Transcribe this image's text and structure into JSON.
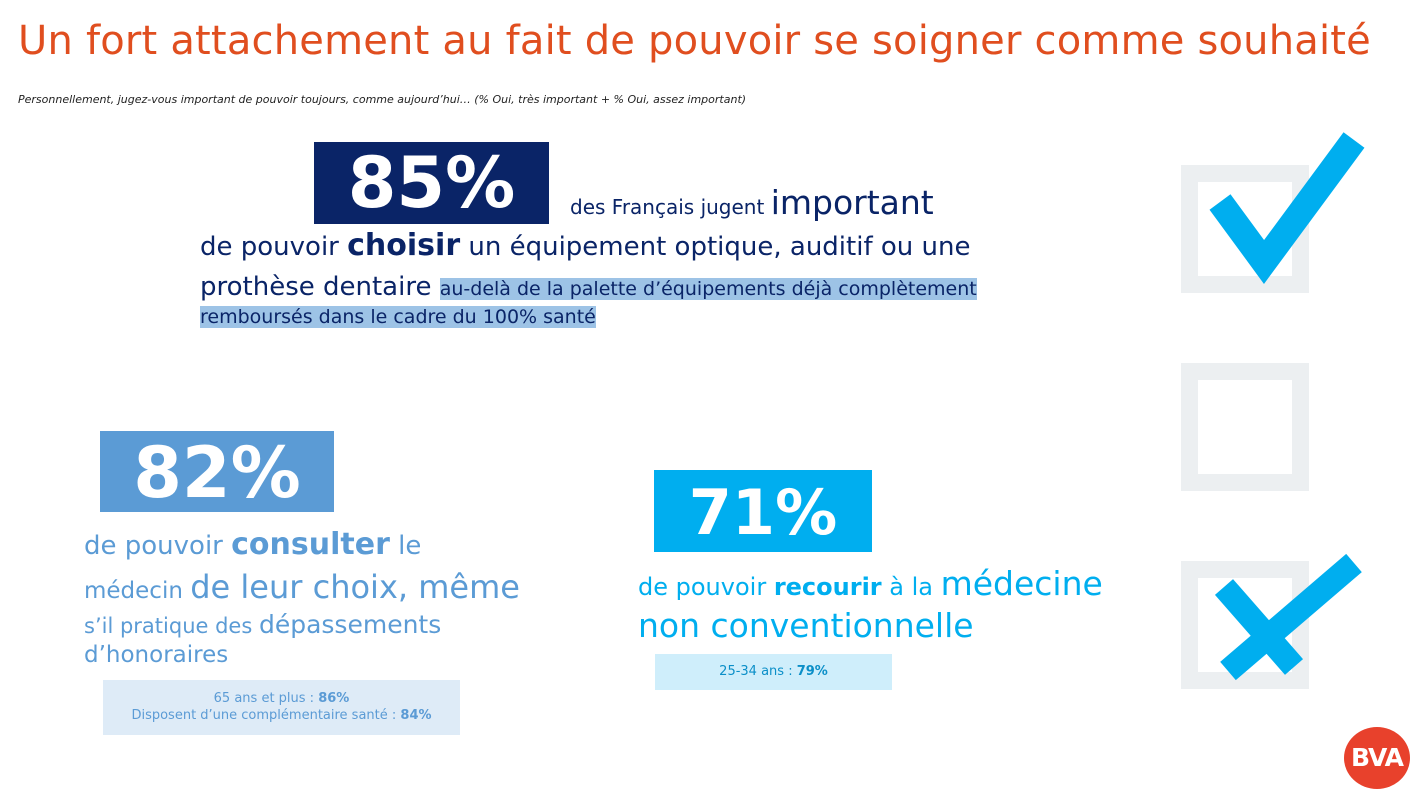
{
  "title": "Un fort attachement au fait de pouvoir se soigner comme souhaité",
  "subtitle": "Personnellement, jugez-vous important de pouvoir toujours, comme aujourd’hui… (% Oui, très important + % Oui, assez important)",
  "stat1": {
    "value": "85%",
    "line_a": "des Français jugent ",
    "line_a_emph": "important",
    "line_b_pre": "de pouvoir ",
    "line_b_bold": "choisir",
    "line_b_post": " un équipement optique, auditif ou une",
    "line_c_pre": "prothèse dentaire ",
    "line_c_hl": "au-delà de la palette d’équipements déjà complètement",
    "line_d_hl": "remboursés dans le cadre du 100% santé"
  },
  "stat2": {
    "value": "82%",
    "line_a_pre": "de pouvoir ",
    "line_a_bold": "consulter",
    "line_a_post": " le",
    "line_b_pre": "médecin ",
    "line_b_lg": "de leur choix, même",
    "line_c_pre": "s’il pratique des ",
    "line_c_lg": "dépassements",
    "line_d": "d’honoraires",
    "note_1_label": "65 ans et plus : ",
    "note_1_value": "86%",
    "note_2_label": "Disposent d’une complémentaire santé : ",
    "note_2_value": "84%"
  },
  "stat3": {
    "value": "71%",
    "line_a_pre": "de pouvoir ",
    "line_a_bold": "recourir",
    "line_a_mid": " à la ",
    "line_a_lg": "médecine",
    "line_b": "non conventionnelle",
    "note_label": "25-34 ans : ",
    "note_value": "79%"
  },
  "logo": {
    "text": "BVA",
    "icon": "bva-logo"
  },
  "icons": [
    "checkbox-checked-icon",
    "checkbox-empty-icon",
    "checkbox-crossed-icon"
  ],
  "colors": {
    "title": "#e04e1f",
    "navy": "#0a2467",
    "mid_blue": "#5b9bd5",
    "cyan": "#00aeef",
    "logo": "#e8412c"
  }
}
